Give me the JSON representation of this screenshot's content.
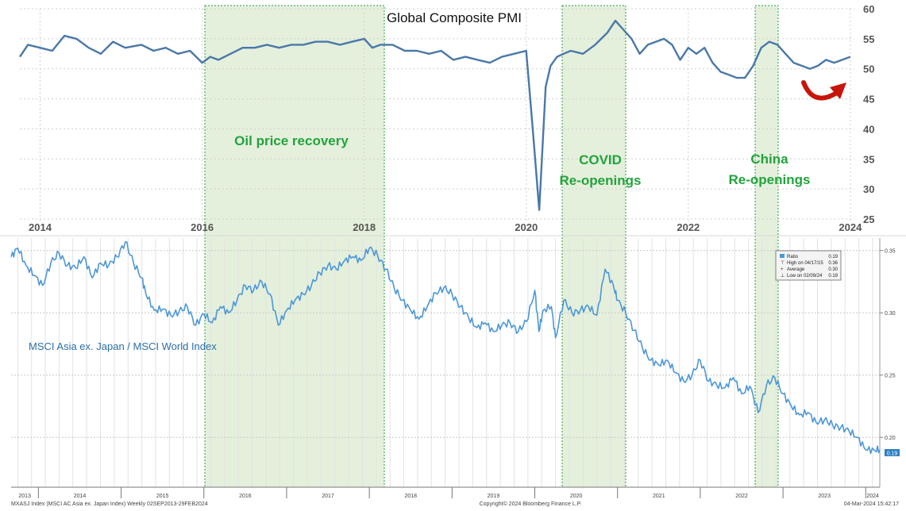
{
  "chart_data": [
    {
      "type": "line",
      "title": "Global Composite PMI",
      "x_ticks": [
        "2014",
        "2016",
        "2018",
        "2020",
        "2022",
        "2024"
      ],
      "y_ticks": [
        "60",
        "55",
        "50",
        "45",
        "40",
        "35",
        "30",
        "25"
      ],
      "ylim": [
        25,
        60
      ],
      "xlim": [
        2013.75,
        2024.05
      ],
      "series": [
        {
          "name": "Global Composite PMI",
          "x": [
            2013.75,
            2013.85,
            2014.0,
            2014.15,
            2014.3,
            2014.45,
            2014.6,
            2014.75,
            2014.9,
            2015.05,
            2015.25,
            2015.4,
            2015.55,
            2015.7,
            2015.85,
            2016.0,
            2016.1,
            2016.2,
            2016.35,
            2016.5,
            2016.65,
            2016.8,
            2016.95,
            2017.1,
            2017.25,
            2017.4,
            2017.55,
            2017.7,
            2017.85,
            2018.0,
            2018.1,
            2018.2,
            2018.35,
            2018.5,
            2018.65,
            2018.8,
            2018.95,
            2019.1,
            2019.25,
            2019.4,
            2019.55,
            2019.7,
            2019.85,
            2020.0,
            2020.08,
            2020.16,
            2020.24,
            2020.3,
            2020.38,
            2020.46,
            2020.55,
            2020.7,
            2020.85,
            2021.0,
            2021.1,
            2021.2,
            2021.3,
            2021.4,
            2021.5,
            2021.6,
            2021.7,
            2021.8,
            2021.9,
            2022.0,
            2022.1,
            2022.2,
            2022.3,
            2022.4,
            2022.5,
            2022.6,
            2022.7,
            2022.8,
            2022.9,
            2023.0,
            2023.1,
            2023.2,
            2023.3,
            2023.4,
            2023.5,
            2023.6,
            2023.7,
            2023.8,
            2023.9,
            2024.0
          ],
          "values": [
            52,
            54,
            53.5,
            53,
            55.5,
            55,
            53.5,
            52.5,
            54.5,
            53.5,
            54,
            53,
            53.5,
            52.5,
            53,
            51,
            52,
            51.5,
            52.5,
            53.5,
            53.5,
            54,
            53.5,
            54,
            54,
            54.5,
            54.5,
            54,
            54.5,
            55,
            53.5,
            54,
            54,
            53,
            53,
            52.5,
            53,
            51.5,
            52,
            51.5,
            51,
            52,
            52.5,
            53,
            40,
            26.5,
            47,
            50.5,
            52,
            52.5,
            53,
            52.5,
            54,
            56,
            58,
            56.5,
            55,
            52.5,
            54,
            54.5,
            55,
            54,
            51.5,
            53.5,
            52.5,
            53.5,
            51,
            49.5,
            49,
            48.5,
            48.5,
            50.5,
            53.5,
            54.5,
            54,
            52.5,
            51,
            50.5,
            50,
            50.5,
            51.5,
            51,
            51.5,
            52
          ]
        }
      ],
      "annotations": [
        "Oil price recovery",
        "COVID",
        "Re-openings",
        "China",
        "Re-openings"
      ]
    },
    {
      "type": "line",
      "title": "MSCI Asia ex. Japan / MSCI World Index",
      "x_ticks": [
        "2013",
        "2014",
        "2015",
        "2016",
        "2017",
        "2018",
        "2019",
        "2020",
        "2021",
        "2022",
        "2023",
        "2024"
      ],
      "y_ticks": [
        "0.35",
        "0.30",
        "0.25",
        "0.20"
      ],
      "ylim": [
        0.16,
        0.36
      ],
      "xlim": [
        2013.67,
        2024.17
      ],
      "series": [
        {
          "name": "Ratio",
          "x": [
            2013.67,
            2013.75,
            2013.85,
            2013.95,
            2014.05,
            2014.15,
            2014.25,
            2014.35,
            2014.45,
            2014.55,
            2014.65,
            2014.75,
            2014.85,
            2014.95,
            2015.05,
            2015.15,
            2015.25,
            2015.3,
            2015.4,
            2015.5,
            2015.6,
            2015.7,
            2015.8,
            2015.9,
            2016.0,
            2016.1,
            2016.2,
            2016.3,
            2016.4,
            2016.5,
            2016.6,
            2016.7,
            2016.8,
            2016.9,
            2017.0,
            2017.1,
            2017.2,
            2017.3,
            2017.4,
            2017.5,
            2017.6,
            2017.7,
            2017.8,
            2017.9,
            2018.0,
            2018.1,
            2018.2,
            2018.3,
            2018.4,
            2018.5,
            2018.6,
            2018.7,
            2018.8,
            2018.9,
            2019.0,
            2019.1,
            2019.2,
            2019.3,
            2019.4,
            2019.5,
            2019.6,
            2019.7,
            2019.8,
            2019.9,
            2020.0,
            2020.05,
            2020.1,
            2020.2,
            2020.25,
            2020.35,
            2020.45,
            2020.55,
            2020.65,
            2020.75,
            2020.85,
            2020.95,
            2021.0,
            2021.1,
            2021.2,
            2021.3,
            2021.4,
            2021.5,
            2021.6,
            2021.7,
            2021.8,
            2021.9,
            2022.0,
            2022.1,
            2022.2,
            2022.3,
            2022.4,
            2022.5,
            2022.6,
            2022.7,
            2022.8,
            2022.9,
            2023.0,
            2023.1,
            2023.2,
            2023.3,
            2023.4,
            2023.5,
            2023.6,
            2023.7,
            2023.8,
            2023.9,
            2024.0,
            2024.1,
            2024.17
          ],
          "values": [
            0.345,
            0.352,
            0.338,
            0.33,
            0.322,
            0.34,
            0.348,
            0.338,
            0.336,
            0.345,
            0.328,
            0.34,
            0.338,
            0.345,
            0.357,
            0.34,
            0.328,
            0.315,
            0.302,
            0.303,
            0.298,
            0.301,
            0.305,
            0.29,
            0.299,
            0.292,
            0.305,
            0.3,
            0.31,
            0.322,
            0.318,
            0.325,
            0.315,
            0.29,
            0.302,
            0.31,
            0.315,
            0.322,
            0.332,
            0.338,
            0.335,
            0.342,
            0.345,
            0.342,
            0.352,
            0.346,
            0.335,
            0.32,
            0.31,
            0.302,
            0.295,
            0.305,
            0.316,
            0.32,
            0.315,
            0.305,
            0.296,
            0.288,
            0.292,
            0.285,
            0.29,
            0.292,
            0.285,
            0.293,
            0.318,
            0.285,
            0.302,
            0.305,
            0.28,
            0.31,
            0.3,
            0.302,
            0.305,
            0.298,
            0.335,
            0.322,
            0.31,
            0.3,
            0.286,
            0.272,
            0.262,
            0.258,
            0.262,
            0.252,
            0.245,
            0.25,
            0.262,
            0.245,
            0.242,
            0.24,
            0.248,
            0.235,
            0.241,
            0.22,
            0.242,
            0.248,
            0.235,
            0.225,
            0.218,
            0.22,
            0.212,
            0.214,
            0.21,
            0.208,
            0.205,
            0.2,
            0.19,
            0.19,
            0.19
          ]
        }
      ],
      "legend": {
        "title": "Ratio",
        "ratio": "0.19",
        "high_label": "High on 04/17/15",
        "high": "0.36",
        "avg_label": "Average",
        "avg": "0.30",
        "low_label": "Low on 02/09/24",
        "low": "0.19"
      },
      "current_value_label": "0.19"
    }
  ],
  "footer": {
    "left": "MXASJ Index (MSCI AC Asia ex. Japan Index) Weekly 02SEP2013-29FEB2024",
    "center": "Copyright© 2024 Bloomberg Finance L.P.",
    "right": "04-Mar-2024 15:42:17"
  },
  "colors": {
    "pmi_line": "#4a78a8",
    "ratio_line": "#4d97d6",
    "shade": "#e4f0dc",
    "shade_border": "#2a9d3a",
    "annotation_text": "#22a33c",
    "arrow": "#c8140a",
    "axis_text": "#555555"
  }
}
